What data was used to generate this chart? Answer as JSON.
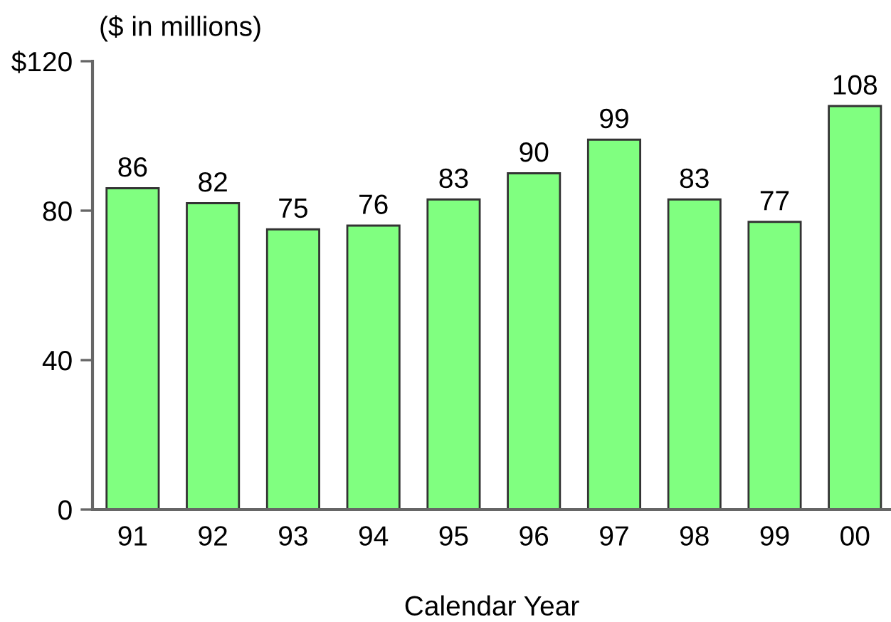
{
  "chart_data": {
    "type": "bar",
    "ylabel": "($ in millions)",
    "xlabel": "Calendar Year",
    "categories": [
      "91",
      "92",
      "93",
      "94",
      "95",
      "96",
      "97",
      "98",
      "99",
      "00"
    ],
    "values": [
      86,
      82,
      75,
      76,
      83,
      90,
      99,
      83,
      77,
      108
    ],
    "color": "#80ff80",
    "ylim": [
      0,
      120
    ],
    "yticks": [
      0,
      40,
      80,
      {
        "value": 120,
        "label": "$120"
      }
    ],
    "data_labels": true
  }
}
